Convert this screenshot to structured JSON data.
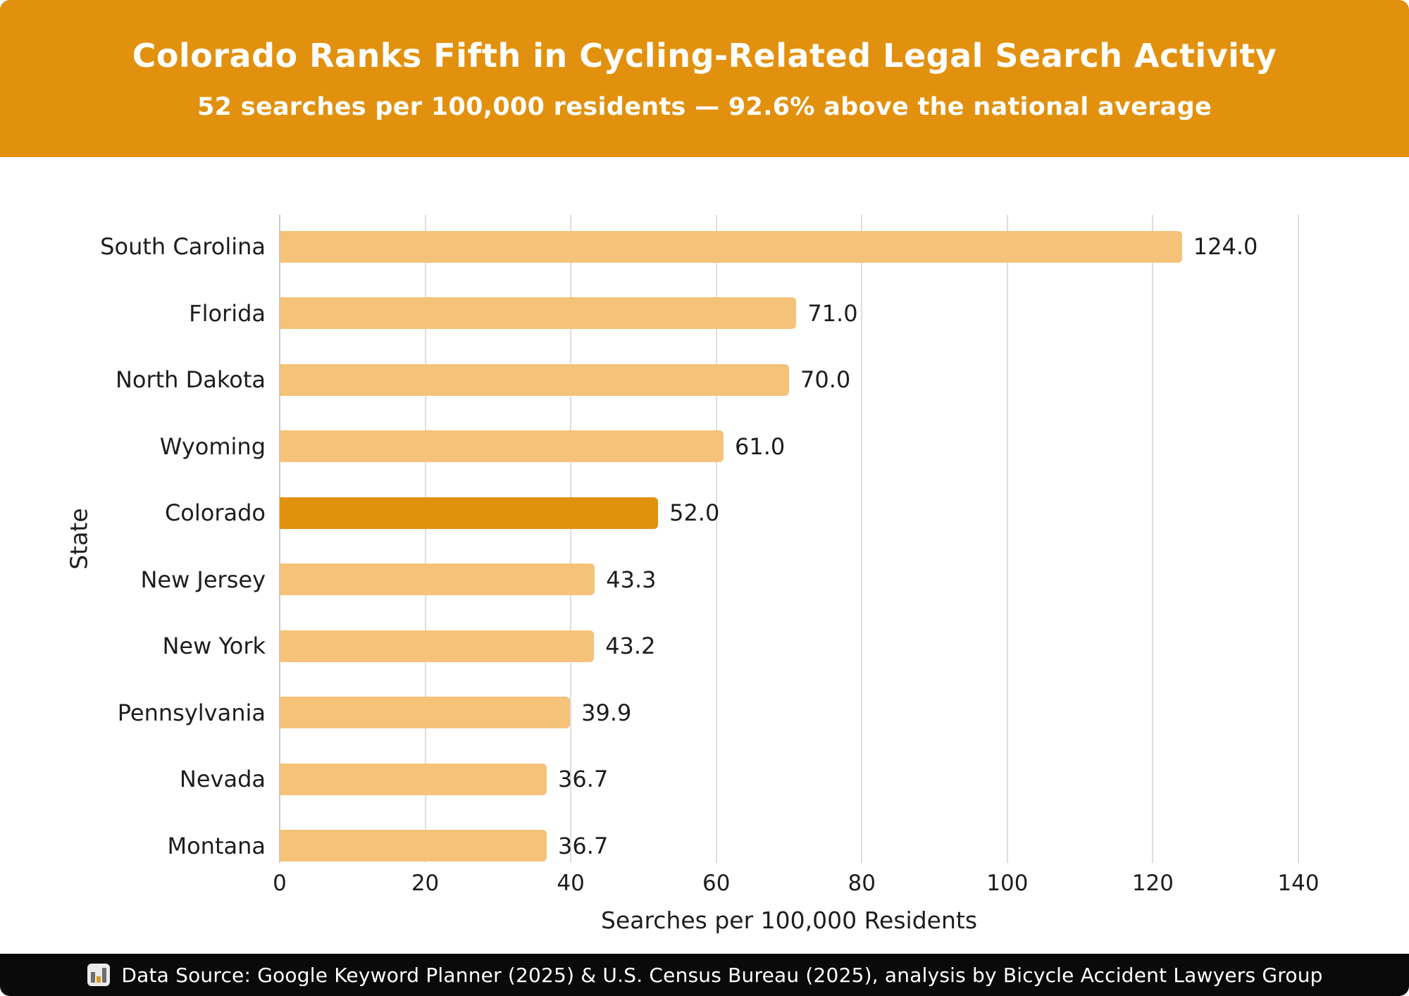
{
  "header": {
    "title": "Colorado Ranks Fifth in Cycling-Related Legal Search Activity",
    "subtitle": "52 searches per 100,000 residents — 92.6% above the national average",
    "bg_color": "#E2910E",
    "text_color": "#FFFFFF"
  },
  "chart_data": {
    "type": "bar",
    "orientation": "horizontal",
    "title": "Colorado Ranks Fifth in Cycling-Related Legal Search Activity",
    "subtitle": "52 searches per 100,000 residents — 92.6% above the national average",
    "categories": [
      "South Carolina",
      "Florida",
      "North Dakota",
      "Wyoming",
      "Colorado",
      "New Jersey",
      "New York",
      "Pennsylvania",
      "Nevada",
      "Montana"
    ],
    "values": [
      124.0,
      71.0,
      70.0,
      61.0,
      52.0,
      43.3,
      43.2,
      39.9,
      36.7,
      36.7
    ],
    "value_labels": [
      "124.0",
      "71.0",
      "70.0",
      "61.0",
      "52.0",
      "43.3",
      "43.2",
      "39.9",
      "36.7",
      "36.7"
    ],
    "highlight_index": 4,
    "highlight_category": "Colorado",
    "xlabel": "Searches per 100,000 Residents",
    "ylabel": "State",
    "xlim": [
      0,
      140
    ],
    "xticks": [
      0,
      20,
      40,
      60,
      80,
      100,
      120,
      140
    ],
    "grid": true,
    "legend": false,
    "bar_color": "#F5C279",
    "highlight_color": "#E2910E",
    "gridline_color": "#DEDEDE",
    "label_color": "#1d1d1d"
  },
  "footer": {
    "icon": "bar-chart-icon",
    "text": "Data Source: Google Keyword Planner (2025) & U.S. Census Bureau (2025), analysis by Bicycle Accident Lawyers Group",
    "bg_color": "#0A0A0A",
    "text_color": "#FFFFFF"
  }
}
